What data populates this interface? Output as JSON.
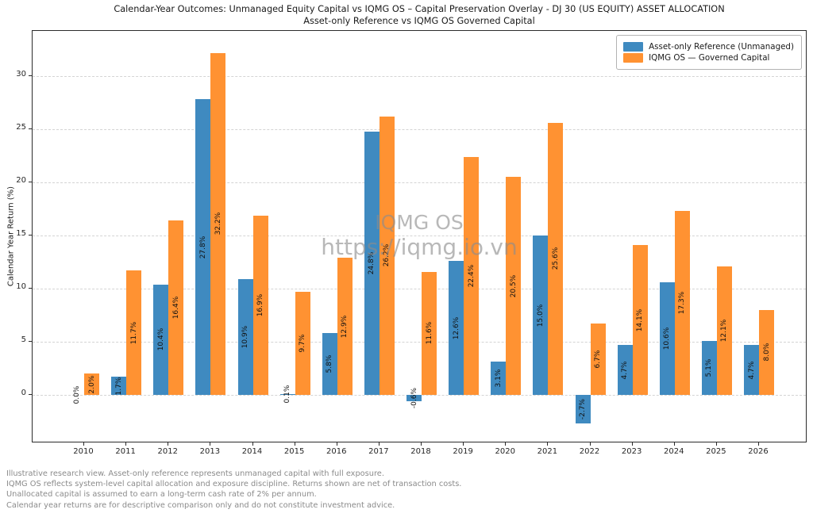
{
  "title": {
    "line1": "Calendar-Year Outcomes: Unmanaged Equity Capital vs IQMG OS – Capital Preservation Overlay - DJ 30 (US EQUITY) ASSET ALLOCATION",
    "line2": "Asset-only Reference vs IQMG OS Governed Capital"
  },
  "chart_data": {
    "type": "bar",
    "categories": [
      "2010",
      "2011",
      "2012",
      "2013",
      "2014",
      "2015",
      "2016",
      "2017",
      "2018",
      "2019",
      "2020",
      "2021",
      "2022",
      "2023",
      "2024",
      "2025",
      "2026"
    ],
    "series": [
      {
        "name": "Asset-only Reference (Unmanaged)",
        "color": "#3f8ac0",
        "values": [
          0.0,
          1.7,
          10.4,
          27.8,
          10.9,
          0.1,
          5.8,
          24.8,
          -0.6,
          12.6,
          3.1,
          15.0,
          -2.7,
          4.7,
          10.6,
          5.1,
          4.7
        ]
      },
      {
        "name": "IQMG OS — Governed Capital",
        "color": "#ff9232",
        "values": [
          2.0,
          11.7,
          16.4,
          32.2,
          16.9,
          9.7,
          12.9,
          26.2,
          11.6,
          22.4,
          20.5,
          25.6,
          6.7,
          14.1,
          17.3,
          12.1,
          8.0
        ]
      }
    ],
    "ylabel": "Calendar Year Return (%)",
    "xlabel": "",
    "yticks": [
      0,
      5,
      10,
      15,
      20,
      25,
      30
    ],
    "ylim": [
      -4.6,
      34.3
    ],
    "grid": "horizontal-dashed",
    "legend_position": "top-right",
    "value_label_format": "{value}%"
  },
  "watermark": {
    "line1": "IQMG OS",
    "line2": "https://iqmg.io.vn"
  },
  "footnotes": [
    "Illustrative research view. Asset-only reference represents unmanaged capital with full exposure.",
    "IQMG OS reflects system-level capital allocation and exposure discipline. Returns shown are net of transaction costs.",
    "Unallocated capital is assumed to earn a long-term cash rate of 2% per annum.",
    "Calendar year returns are for descriptive comparison only and do not constitute investment advice."
  ]
}
